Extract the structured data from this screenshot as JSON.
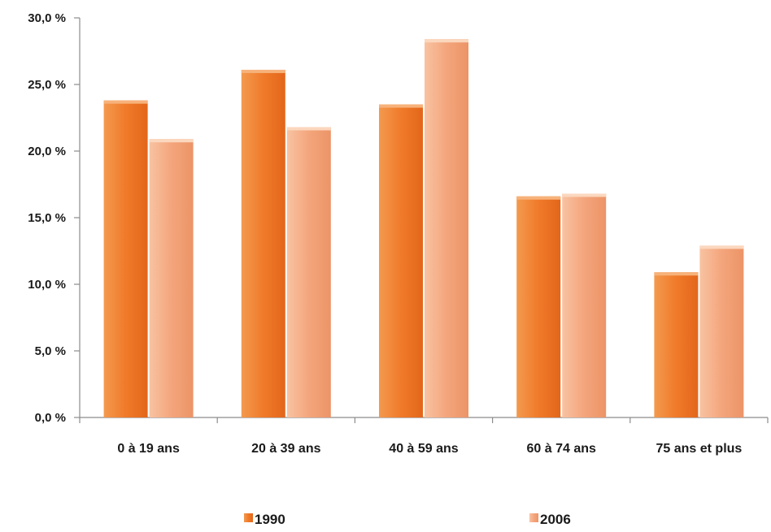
{
  "chart_data": {
    "type": "bar",
    "title": "",
    "xlabel": "",
    "ylabel": "",
    "categories": [
      "0 à 19 ans",
      "20 à 39 ans",
      "40 à 59 ans",
      "60 à 74 ans",
      "75 ans et plus"
    ],
    "series": [
      {
        "name": "1990",
        "values": [
          23.8,
          26.1,
          23.5,
          16.6,
          10.9
        ],
        "color": "#f07a2a"
      },
      {
        "name": "2006",
        "values": [
          20.9,
          21.8,
          28.4,
          16.8,
          12.9
        ],
        "color": "#f4a57c"
      }
    ],
    "ylim": [
      0,
      30
    ],
    "yticks": [
      "0,0 %",
      "5,0 %",
      "10,0 %",
      "15,0 %",
      "20,0 %",
      "25,0 %",
      "30,0 %"
    ],
    "grid": false,
    "legend": "bottom"
  }
}
